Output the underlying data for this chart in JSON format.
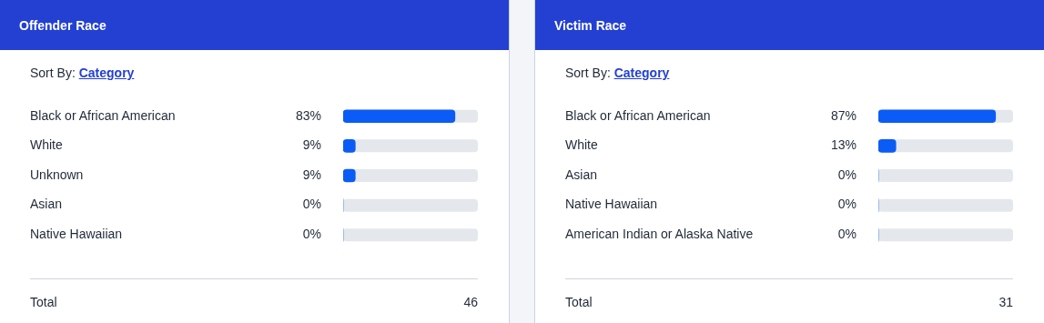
{
  "chart_data": [
    {
      "type": "bar",
      "orientation": "horizontal",
      "title": "Offender Race",
      "categories": [
        "Black or African American",
        "White",
        "Unknown",
        "Asian",
        "Native Hawaiian"
      ],
      "values": [
        83,
        9,
        9,
        0,
        0
      ],
      "value_labels": [
        "83%",
        "9%",
        "9%",
        "0%",
        "0%"
      ],
      "color": "#0b5cf6",
      "xlim": [
        0,
        100
      ],
      "tick_labels": "y",
      "annotations": [
        "Sort By:",
        "Category",
        "Total",
        "46"
      ]
    },
    {
      "type": "bar",
      "orientation": "horizontal",
      "title": "Victim Race",
      "categories": [
        "Black or African American",
        "White",
        "Asian",
        "Native Hawaiian",
        "American Indian or Alaska Native"
      ],
      "values": [
        87,
        13,
        0,
        0,
        0
      ],
      "value_labels": [
        "87%",
        "13%",
        "0%",
        "0%",
        "0%"
      ],
      "color": "#0b5cf6",
      "xlim": [
        0,
        100
      ],
      "tick_labels": "y",
      "annotations": [
        "Sort By:",
        "Category",
        "Total",
        "31"
      ]
    }
  ]
}
